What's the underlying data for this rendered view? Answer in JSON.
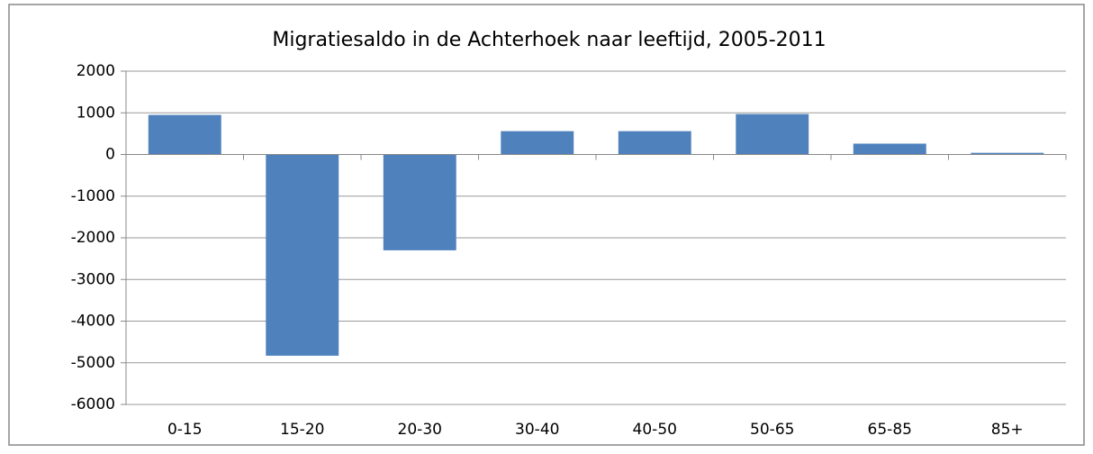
{
  "chart_data": {
    "type": "bar",
    "title": "Migratiesaldo in de Achterhoek naar leeftijd, 2005-2011",
    "categories": [
      "0-15",
      "15-20",
      "20-30",
      "30-40",
      "40-50",
      "50-65",
      "65-85",
      "85+"
    ],
    "values": [
      950,
      -4830,
      -2300,
      560,
      560,
      970,
      260,
      40
    ],
    "color": "#4f81bd",
    "ylim": [
      -6000,
      2000
    ],
    "yticks": [
      -6000,
      -5000,
      -4000,
      -3000,
      -2000,
      -1000,
      0,
      1000,
      2000
    ],
    "grid": true
  }
}
